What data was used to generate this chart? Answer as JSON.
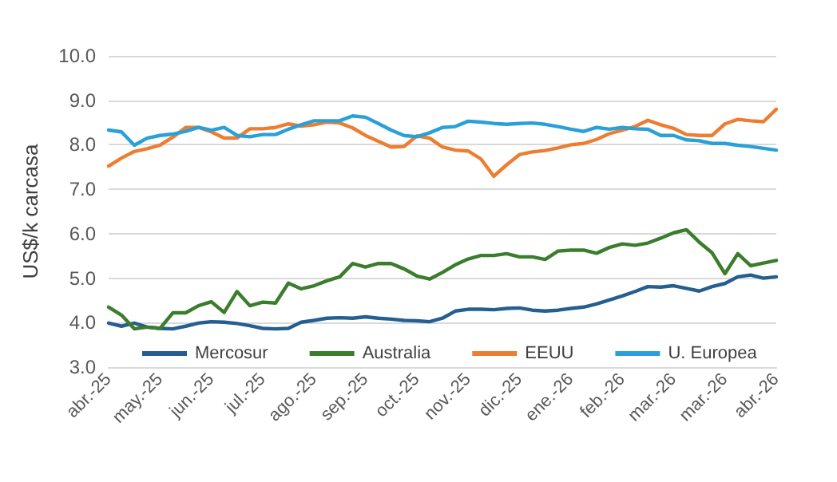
{
  "chart_data": {
    "type": "line",
    "ylabel": "US$/k carcasa",
    "categories": [
      "abr.-25",
      null,
      null,
      null,
      "may.-25",
      null,
      null,
      null,
      "jun.-25",
      null,
      null,
      null,
      "jul.-25",
      null,
      null,
      null,
      "ago.-25",
      null,
      null,
      null,
      "sep.-25",
      null,
      null,
      null,
      "oct.-25",
      null,
      null,
      null,
      "nov.-25",
      null,
      null,
      null,
      "dic.-25",
      null,
      null,
      null,
      "ene.-26",
      null,
      null,
      null,
      "feb.-26",
      null,
      null,
      null,
      "mar.-26",
      null,
      null,
      null,
      "mar.-26",
      null,
      null,
      null,
      "abr.-26"
    ],
    "series": [
      {
        "name": "Mercosur",
        "color": "#255e91",
        "values": [
          3.99,
          3.92,
          3.99,
          3.9,
          3.87,
          3.86,
          3.92,
          3.99,
          4.02,
          4.01,
          3.98,
          3.93,
          3.87,
          3.86,
          3.87,
          4.01,
          4.05,
          4.1,
          4.11,
          4.1,
          4.13,
          4.1,
          4.08,
          4.05,
          4.04,
          4.02,
          4.1,
          4.26,
          4.3,
          4.3,
          4.29,
          4.32,
          4.33,
          4.28,
          4.26,
          4.28,
          4.32,
          4.35,
          4.42,
          4.51,
          4.6,
          4.7,
          4.81,
          4.8,
          4.83,
          4.77,
          4.71,
          4.81,
          4.88,
          5.03,
          5.07,
          5.0,
          5.03
        ]
      },
      {
        "name": "Australia",
        "color": "#3a7d2c",
        "values": [
          4.35,
          4.17,
          3.86,
          3.9,
          3.87,
          4.22,
          4.22,
          4.38,
          4.47,
          4.23,
          4.7,
          4.38,
          4.46,
          4.44,
          4.89,
          4.76,
          4.83,
          4.94,
          5.03,
          5.33,
          5.25,
          5.33,
          5.33,
          5.21,
          5.05,
          4.98,
          5.13,
          5.3,
          5.43,
          5.51,
          5.51,
          5.55,
          5.48,
          5.48,
          5.42,
          5.61,
          5.63,
          5.63,
          5.56,
          5.69,
          5.77,
          5.74,
          5.79,
          5.9,
          6.02,
          6.09,
          5.81,
          5.57,
          5.1,
          5.55,
          5.28,
          5.34,
          5.4
        ]
      },
      {
        "name": "EEUU",
        "color": "#ed7d31",
        "values": [
          7.52,
          7.7,
          7.85,
          7.91,
          7.99,
          8.17,
          8.39,
          8.39,
          8.29,
          8.15,
          8.15,
          8.36,
          8.36,
          8.39,
          8.47,
          8.42,
          8.45,
          8.51,
          8.49,
          8.38,
          8.21,
          8.08,
          7.95,
          7.96,
          8.2,
          8.15,
          7.95,
          7.88,
          7.86,
          7.68,
          7.29,
          7.55,
          7.78,
          7.84,
          7.87,
          7.93,
          8.0,
          8.03,
          8.12,
          8.25,
          8.33,
          8.41,
          8.55,
          8.45,
          8.37,
          8.23,
          8.21,
          8.21,
          8.47,
          8.57,
          8.54,
          8.52,
          8.8
        ]
      },
      {
        "name": "U. Europea",
        "color": "#2aa0d8",
        "values": [
          8.33,
          8.29,
          7.99,
          8.15,
          8.21,
          8.24,
          8.3,
          8.39,
          8.33,
          8.39,
          8.21,
          8.18,
          8.23,
          8.23,
          8.35,
          8.45,
          8.54,
          8.54,
          8.54,
          8.65,
          8.62,
          8.48,
          8.33,
          8.21,
          8.18,
          8.27,
          8.39,
          8.41,
          8.53,
          8.51,
          8.48,
          8.46,
          8.48,
          8.49,
          8.46,
          8.41,
          8.35,
          8.3,
          8.39,
          8.35,
          8.39,
          8.36,
          8.35,
          8.21,
          8.21,
          8.11,
          8.09,
          8.03,
          8.03,
          7.99,
          7.96,
          7.92,
          7.88
        ]
      }
    ],
    "ylim": [
      3,
      10
    ],
    "yticks": [
      {
        "value": 3,
        "label": "3.0"
      },
      {
        "value": 4,
        "label": "4.0"
      },
      {
        "value": 5,
        "label": "5.0"
      },
      {
        "value": 6,
        "label": "6.0"
      },
      {
        "value": 7,
        "label": "7.0"
      },
      {
        "value": 8,
        "label": "8.0"
      },
      {
        "value": 9,
        "label": "9.0"
      },
      {
        "value": 10,
        "label": "10.0"
      }
    ],
    "grid": "y",
    "legend": "bottom",
    "marker": "none",
    "line_style": "solid"
  }
}
